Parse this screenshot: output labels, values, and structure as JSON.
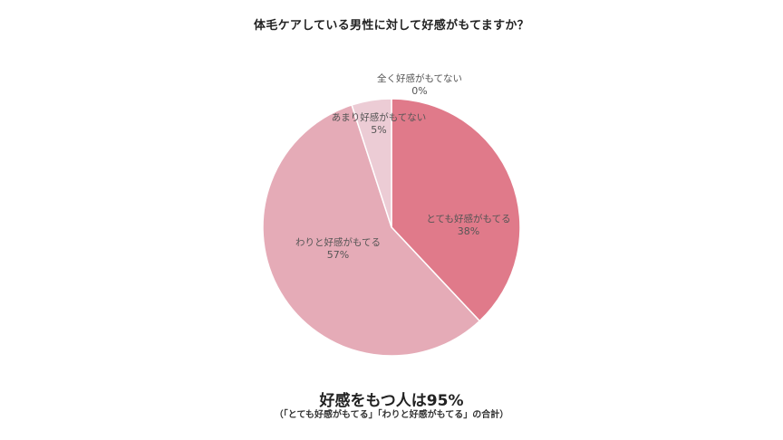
{
  "chart_data": {
    "type": "pie",
    "title": "体毛ケアしている男性に対して好感がもてますか？",
    "categories": [
      "とても好感がもてる",
      "わりと好感がもてる",
      "あまり好感がもてない",
      "全く好感がもてない"
    ],
    "values": [
      38,
      57,
      5,
      0
    ],
    "unit": "%",
    "colors": [
      "#e07a8a",
      "#e5abb7",
      "#ecccd5",
      "#f2dde3"
    ],
    "start_angle": "12 o'clock, clockwise",
    "legend": "none (labels on slices)"
  },
  "labels": {
    "s0": {
      "name": "とても好感がもてる",
      "pct": "38%"
    },
    "s1": {
      "name": "わりと好感がもてる",
      "pct": "57%"
    },
    "s2": {
      "name": "あまり好感がもてない",
      "pct": "5%"
    },
    "s3": {
      "name": "全く好感がもてない",
      "pct": "0%"
    }
  },
  "summary": {
    "headline": "好感をもつ人は95%",
    "note": "（「とても好感がもてる」「わりと好感がもてる」の合計）"
  }
}
